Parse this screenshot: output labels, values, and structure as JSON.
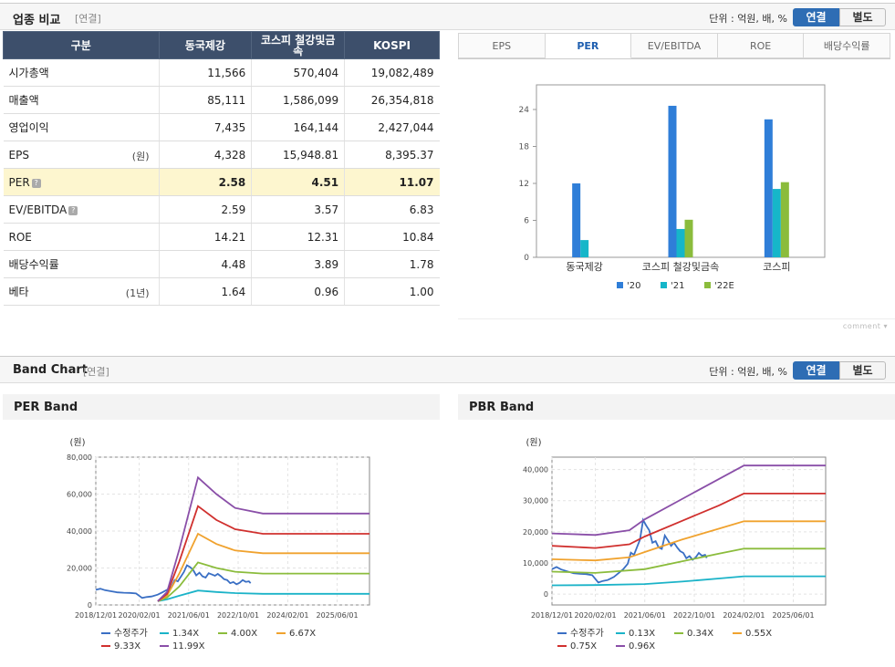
{
  "industry": {
    "title": "업종 비교",
    "basis": "[연결]",
    "unit_label": "단위 : 억원, 배, %",
    "toggle": {
      "consolidated": "연결",
      "separate": "별도"
    },
    "columns": [
      "구분",
      "동국제강",
      "코스피 철강및금속",
      "KOSPI"
    ],
    "rows": [
      {
        "label": "시가총액",
        "note": "",
        "values": [
          "11,566",
          "570,404",
          "19,082,489"
        ]
      },
      {
        "label": "매출액",
        "note": "",
        "values": [
          "85,111",
          "1,586,099",
          "26,354,818"
        ]
      },
      {
        "label": "영업이익",
        "note": "",
        "values": [
          "7,435",
          "164,144",
          "2,427,044"
        ]
      },
      {
        "label": "EPS",
        "note": "(원)",
        "values": [
          "4,328",
          "15,948.81",
          "8,395.37"
        ]
      },
      {
        "label": "PER",
        "note": "",
        "values": [
          "2.58",
          "4.51",
          "11.07"
        ]
      },
      {
        "label": "EV/EBITDA",
        "note": "",
        "values": [
          "2.59",
          "3.57",
          "6.83"
        ]
      },
      {
        "label": "ROE",
        "note": "",
        "values": [
          "14.21",
          "12.31",
          "10.84"
        ]
      },
      {
        "label": "배당수익률",
        "note": "",
        "values": [
          "4.48",
          "3.89",
          "1.78"
        ]
      },
      {
        "label": "베타",
        "note": "(1년)",
        "values": [
          "1.64",
          "0.96",
          "1.00"
        ]
      }
    ],
    "tabs": [
      "EPS",
      "PER",
      "EV/EBITDA",
      "ROE",
      "배당수익률"
    ],
    "active_tab": "PER",
    "comment_label": "comment"
  },
  "band": {
    "title": "Band Chart",
    "basis": "[연결]",
    "unit_label": "단위 : 억원, 배, %",
    "toggle": {
      "consolidated": "연결",
      "separate": "별도"
    }
  },
  "colors": {
    "header_bg": "#3d4f6b",
    "highlight_row": "#fdf6cf",
    "accent": "#2e6db4"
  },
  "chart_data": [
    {
      "id": "per-compare",
      "type": "bar",
      "categories": [
        "동국제강",
        "코스피 철강및금속",
        "코스피"
      ],
      "series": [
        {
          "name": "'20",
          "color": "#2f7ed8",
          "values": [
            12.0,
            24.6,
            22.4
          ]
        },
        {
          "name": "'21",
          "color": "#16b6c9",
          "values": [
            2.8,
            4.6,
            11.1
          ]
        },
        {
          "name": "'22E",
          "color": "#8bbc3c",
          "values": [
            null,
            6.1,
            12.2
          ]
        }
      ],
      "ylim": [
        0,
        28
      ],
      "yticks": [
        0,
        6,
        12,
        18,
        24
      ],
      "grid": false,
      "legend": "bottom"
    },
    {
      "id": "per-band",
      "type": "line",
      "title": "PER Band",
      "ylabel": "(원)",
      "ylim": [
        0,
        80000
      ],
      "yticks": [
        "0",
        "20,000",
        "40,000",
        "60,000",
        "80,000"
      ],
      "ytick_values": [
        0,
        20000,
        40000,
        60000,
        80000
      ],
      "xlim": [
        "2018-12-01",
        "2026-04-15"
      ],
      "xticks": [
        "2018/12/01",
        "2020/02/01",
        "2021/06/01",
        "2022/10/01",
        "2024/02/01",
        "2025/06/01"
      ],
      "grid": true,
      "legend": "bottom",
      "series": [
        {
          "name": "수정주가",
          "color": "#3a6fc4",
          "points": [
            [
              "2018-12-01",
              8200
            ],
            [
              "2019-01-15",
              8800
            ],
            [
              "2019-03-01",
              8000
            ],
            [
              "2019-05-01",
              7400
            ],
            [
              "2019-07-01",
              6800
            ],
            [
              "2019-09-01",
              6600
            ],
            [
              "2019-11-01",
              6500
            ],
            [
              "2020-01-01",
              6200
            ],
            [
              "2020-03-01",
              3800
            ],
            [
              "2020-04-15",
              4300
            ],
            [
              "2020-06-01",
              4600
            ],
            [
              "2020-08-01",
              5600
            ],
            [
              "2020-09-15",
              6800
            ],
            [
              "2020-11-01",
              8200
            ],
            [
              "2020-12-15",
              9800
            ],
            [
              "2021-01-15",
              13500
            ],
            [
              "2021-02-15",
              12800
            ],
            [
              "2021-03-15",
              15200
            ],
            [
              "2021-04-15",
              17800
            ],
            [
              "2021-05-15",
              21500
            ],
            [
              "2021-06-15",
              20500
            ],
            [
              "2021-07-15",
              19000
            ],
            [
              "2021-08-15",
              16000
            ],
            [
              "2021-09-15",
              17500
            ],
            [
              "2021-10-15",
              15500
            ],
            [
              "2021-11-15",
              14800
            ],
            [
              "2021-12-15",
              17200
            ],
            [
              "2022-01-15",
              16500
            ],
            [
              "2022-02-15",
              15800
            ],
            [
              "2022-03-15",
              16800
            ],
            [
              "2022-04-15",
              15500
            ],
            [
              "2022-05-15",
              14000
            ],
            [
              "2022-06-15",
              13500
            ],
            [
              "2022-07-15",
              11800
            ],
            [
              "2022-08-15",
              12400
            ],
            [
              "2022-09-15",
              11200
            ],
            [
              "2022-10-15",
              12000
            ],
            [
              "2022-11-15",
              13500
            ],
            [
              "2022-12-15",
              12500
            ],
            [
              "2023-01-15",
              12800
            ],
            [
              "2023-02-01",
              11800
            ]
          ]
        },
        {
          "name": "1.34X",
          "color": "#1bb3c8",
          "points": [
            [
              "2020-08-01",
              2000
            ],
            [
              "2020-11-01",
              3000
            ],
            [
              "2021-03-01",
              5000
            ],
            [
              "2021-09-01",
              7800
            ],
            [
              "2022-03-01",
              7000
            ],
            [
              "2022-09-01",
              6400
            ],
            [
              "2023-06-01",
              6000
            ],
            [
              "2026-04-15",
              6000
            ]
          ]
        },
        {
          "name": "4.00X",
          "color": "#8bbc3c",
          "points": [
            [
              "2020-08-01",
              2000
            ],
            [
              "2020-11-01",
              4000
            ],
            [
              "2021-03-01",
              10000
            ],
            [
              "2021-09-01",
              23000
            ],
            [
              "2022-03-01",
              20000
            ],
            [
              "2022-09-01",
              18000
            ],
            [
              "2023-06-01",
              17000
            ],
            [
              "2026-04-15",
              17000
            ]
          ]
        },
        {
          "name": "6.67X",
          "color": "#f0a22e",
          "points": [
            [
              "2020-08-01",
              2000
            ],
            [
              "2020-11-01",
              5000
            ],
            [
              "2021-03-01",
              17000
            ],
            [
              "2021-09-01",
              38500
            ],
            [
              "2022-03-01",
              33000
            ],
            [
              "2022-09-01",
              29500
            ],
            [
              "2023-06-01",
              28000
            ],
            [
              "2026-04-15",
              28000
            ]
          ]
        },
        {
          "name": "9.33X",
          "color": "#d0302e",
          "points": [
            [
              "2020-08-01",
              2000
            ],
            [
              "2020-11-01",
              6000
            ],
            [
              "2021-03-01",
              23500
            ],
            [
              "2021-09-01",
              53500
            ],
            [
              "2022-03-01",
              46000
            ],
            [
              "2022-09-01",
              41000
            ],
            [
              "2023-06-01",
              38500
            ],
            [
              "2026-04-15",
              38500
            ]
          ]
        },
        {
          "name": "11.99X",
          "color": "#8a4fa8",
          "points": [
            [
              "2020-08-01",
              2000
            ],
            [
              "2020-11-01",
              7000
            ],
            [
              "2021-03-01",
              30000
            ],
            [
              "2021-09-01",
              69000
            ],
            [
              "2022-03-01",
              60000
            ],
            [
              "2022-09-01",
              52500
            ],
            [
              "2023-06-01",
              49500
            ],
            [
              "2026-04-15",
              49500
            ]
          ]
        }
      ]
    },
    {
      "id": "pbr-band",
      "type": "line",
      "title": "PBR Band",
      "ylabel": "(원)",
      "ylim": [
        -3500,
        44000
      ],
      "yticks": [
        "0",
        "10,000",
        "20,000",
        "30,000",
        "40,000"
      ],
      "ytick_values": [
        0,
        10000,
        20000,
        30000,
        40000
      ],
      "xlim": [
        "2018-12-01",
        "2026-04-15"
      ],
      "xticks": [
        "2018/12/01",
        "2020/02/01",
        "2021/06/01",
        "2022/10/01",
        "2024/02/01",
        "2025/06/01"
      ],
      "grid": true,
      "legend": "bottom",
      "series": [
        {
          "name": "수정주가",
          "color": "#3a6fc4",
          "points": [
            [
              "2018-12-01",
              8000
            ],
            [
              "2019-01-15",
              8700
            ],
            [
              "2019-03-01",
              7900
            ],
            [
              "2019-05-01",
              7300
            ],
            [
              "2019-07-01",
              6700
            ],
            [
              "2019-09-01",
              6500
            ],
            [
              "2019-11-01",
              6400
            ],
            [
              "2020-01-01",
              6100
            ],
            [
              "2020-03-01",
              3700
            ],
            [
              "2020-04-15",
              4200
            ],
            [
              "2020-06-01",
              4500
            ],
            [
              "2020-08-01",
              5500
            ],
            [
              "2020-09-15",
              6700
            ],
            [
              "2020-11-01",
              8000
            ],
            [
              "2020-12-15",
              9700
            ],
            [
              "2021-01-15",
              13300
            ],
            [
              "2021-02-15",
              12600
            ],
            [
              "2021-03-15",
              15000
            ],
            [
              "2021-04-15",
              17500
            ],
            [
              "2021-05-15",
              23800
            ],
            [
              "2021-06-15",
              22000
            ],
            [
              "2021-07-15",
              20500
            ],
            [
              "2021-08-15",
              16500
            ],
            [
              "2021-09-15",
              17000
            ],
            [
              "2021-10-15",
              15000
            ],
            [
              "2021-11-15",
              14500
            ],
            [
              "2021-12-15",
              18800
            ],
            [
              "2022-01-15",
              17200
            ],
            [
              "2022-02-15",
              15500
            ],
            [
              "2022-03-15",
              16500
            ],
            [
              "2022-04-15",
              15000
            ],
            [
              "2022-05-15",
              13800
            ],
            [
              "2022-06-15",
              13200
            ],
            [
              "2022-07-15",
              11500
            ],
            [
              "2022-08-15",
              12200
            ],
            [
              "2022-09-15",
              11000
            ],
            [
              "2022-10-15",
              11800
            ],
            [
              "2022-11-15",
              13200
            ],
            [
              "2022-12-15",
              12300
            ],
            [
              "2023-01-15",
              12600
            ],
            [
              "2023-02-01",
              11600
            ]
          ]
        },
        {
          "name": "0.13X",
          "color": "#1bb3c8",
          "points": [
            [
              "2018-12-01",
              2800
            ],
            [
              "2020-02-01",
              2900
            ],
            [
              "2021-06-01",
              3200
            ],
            [
              "2022-06-01",
              4000
            ],
            [
              "2023-06-01",
              5000
            ],
            [
              "2024-02-01",
              5700
            ],
            [
              "2026-04-15",
              5700
            ]
          ]
        },
        {
          "name": "0.34X",
          "color": "#8bbc3c",
          "points": [
            [
              "2018-12-01",
              7200
            ],
            [
              "2020-02-01",
              6800
            ],
            [
              "2021-06-01",
              8000
            ],
            [
              "2022-06-01",
              10500
            ],
            [
              "2023-06-01",
              13000
            ],
            [
              "2024-02-01",
              14600
            ],
            [
              "2026-04-15",
              14600
            ]
          ]
        },
        {
          "name": "0.55X",
          "color": "#f0a22e",
          "points": [
            [
              "2018-12-01",
              11200
            ],
            [
              "2020-02-01",
              10800
            ],
            [
              "2021-01-01",
              11800
            ],
            [
              "2021-06-01",
              13500
            ],
            [
              "2022-06-01",
              17500
            ],
            [
              "2023-06-01",
              21000
            ],
            [
              "2024-02-01",
              23400
            ],
            [
              "2026-04-15",
              23400
            ]
          ]
        },
        {
          "name": "0.75X",
          "color": "#d0302e",
          "points": [
            [
              "2018-12-01",
              15500
            ],
            [
              "2020-02-01",
              14800
            ],
            [
              "2021-01-01",
              16000
            ],
            [
              "2021-06-01",
              18500
            ],
            [
              "2022-06-01",
              23500
            ],
            [
              "2023-06-01",
              28500
            ],
            [
              "2024-02-01",
              32300
            ],
            [
              "2026-04-15",
              32300
            ]
          ]
        },
        {
          "name": "0.96X",
          "color": "#8a4fa8",
          "points": [
            [
              "2018-12-01",
              19500
            ],
            [
              "2020-02-01",
              19000
            ],
            [
              "2021-01-01",
              20500
            ],
            [
              "2021-06-01",
              24000
            ],
            [
              "2022-06-01",
              30500
            ],
            [
              "2023-06-01",
              37000
            ],
            [
              "2024-02-01",
              41300
            ],
            [
              "2026-04-15",
              41300
            ]
          ]
        }
      ]
    }
  ]
}
